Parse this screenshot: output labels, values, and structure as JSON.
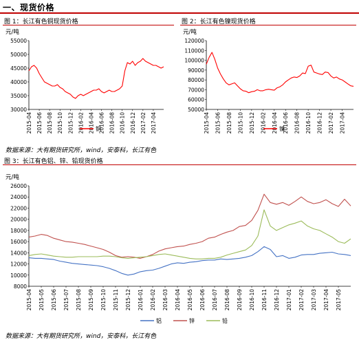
{
  "section_title": "一、现货价格",
  "source_label": "数据来源：大有期货研究所，wind，安泰科，长江有色",
  "chart_data": [
    {
      "id": "fig1",
      "type": "line",
      "caption": "图 1：长江有色铜现货价格",
      "ylabel": "元/吨",
      "ylim": [
        30000,
        55000
      ],
      "yticks": [
        30000,
        35000,
        40000,
        45000,
        50000,
        55000
      ],
      "ytick_labels": [
        "30000",
        "35000",
        "40000",
        "45000",
        "50000",
        "55000"
      ],
      "x_index_range": [
        0,
        26
      ],
      "xtick_labels": [
        "2015-04",
        "2015-06",
        "2015-08",
        "2015-10",
        "2015-12",
        "2016-02",
        "2016-04",
        "2016-06",
        "2016-08",
        "2016-10",
        "2016-12",
        "2017-02",
        "2017-04"
      ],
      "xtick_step": 2,
      "series": [
        {
          "name": "铜",
          "color": "#ff0000",
          "x": [
            0,
            0.5,
            1,
            1.5,
            2,
            2.5,
            3,
            3.5,
            4,
            4.5,
            5,
            5.5,
            6,
            6.5,
            7,
            7.5,
            8,
            8.5,
            9,
            9.5,
            10,
            10.5,
            11,
            11.5,
            12,
            12.5,
            13,
            13.5,
            14,
            14.5,
            15,
            15.5,
            16,
            16.5,
            17,
            17.5,
            18,
            18.5,
            19,
            19.5,
            20,
            20.5,
            21,
            21.5,
            22,
            22.5,
            23,
            23.5,
            24,
            24.5,
            25,
            25.5,
            26
          ],
          "values": [
            44000,
            45500,
            46000,
            45000,
            43000,
            41500,
            40000,
            39500,
            39000,
            38500,
            38500,
            39000,
            38000,
            37500,
            36500,
            36000,
            35500,
            34500,
            34000,
            35000,
            35500,
            35000,
            35500,
            36000,
            36500,
            37000,
            37000,
            37500,
            36500,
            36000,
            36500,
            37000,
            36500,
            36500,
            37000,
            37500,
            38500,
            44000,
            47000,
            46500,
            47500,
            46000,
            47000,
            47500,
            48500,
            47500,
            47000,
            46500,
            46000,
            46000,
            45500,
            45000,
            45500
          ]
        }
      ]
    },
    {
      "id": "fig2",
      "type": "line",
      "caption": "图 2：长江有色镍现货价格",
      "ylabel": "元/吨",
      "ylim": [
        50000,
        120000
      ],
      "yticks": [
        50000,
        60000,
        70000,
        80000,
        90000,
        100000,
        110000,
        120000
      ],
      "ytick_labels": [
        "50000",
        "60000",
        "70000",
        "80000",
        "90000",
        "100000",
        "110000",
        "120000"
      ],
      "x_index_range": [
        0,
        26
      ],
      "xtick_labels": [
        "2015-04",
        "2015-06",
        "2015-08",
        "2015-10",
        "2015-12",
        "2016-02",
        "2016-04",
        "2016-06",
        "2016-08",
        "2016-10",
        "2016-12",
        "2017-02",
        "2017-04"
      ],
      "xtick_step": 2,
      "series": [
        {
          "name": "镍",
          "color": "#ff0000",
          "x": [
            0,
            0.5,
            1,
            1.5,
            2,
            2.5,
            3,
            3.5,
            4,
            4.5,
            5,
            5.5,
            6,
            6.5,
            7,
            7.5,
            8,
            8.5,
            9,
            9.5,
            10,
            10.5,
            11,
            11.5,
            12,
            12.5,
            13,
            13.5,
            14,
            14.5,
            15,
            15.5,
            16,
            16.5,
            17,
            17.5,
            18,
            18.5,
            19,
            19.5,
            20,
            20.5,
            21,
            21.5,
            22,
            22.5,
            23,
            23.5,
            24,
            24.5,
            25,
            25.5,
            26
          ],
          "values": [
            96000,
            103000,
            108000,
            101000,
            92000,
            86000,
            81000,
            77000,
            75000,
            76000,
            77000,
            74000,
            71000,
            69000,
            68500,
            67000,
            68000,
            68500,
            70000,
            69000,
            69000,
            70000,
            70500,
            70000,
            69500,
            72000,
            73000,
            75000,
            78000,
            80000,
            82000,
            83000,
            82500,
            84000,
            87000,
            86500,
            94000,
            95000,
            88000,
            87000,
            86000,
            85500,
            88000,
            87500,
            84000,
            82000,
            83000,
            81000,
            80000,
            78000,
            76000,
            74000,
            73500
          ]
        }
      ]
    },
    {
      "id": "fig3",
      "type": "line",
      "caption": "图 3：长江有色铝、锌、铅现货价格",
      "ylabel": "元/吨",
      "ylim": [
        8000,
        26000
      ],
      "yticks": [
        8000,
        10000,
        12000,
        14000,
        16000,
        18000,
        20000,
        22000,
        24000,
        26000
      ],
      "ytick_labels": [
        "8000",
        "10000",
        "12000",
        "14000",
        "16000",
        "18000",
        "20000",
        "22000",
        "24000",
        "26000"
      ],
      "x_index_range": [
        0,
        26
      ],
      "xtick_labels": [
        "2015-04",
        "2015-05",
        "2015-06",
        "2015-07",
        "2015-08",
        "2015-09",
        "2015-10",
        "2015-11",
        "2015-12",
        "2016-01",
        "2016-02",
        "2016-03",
        "2016-04",
        "2016-05",
        "2016-06",
        "2016-07",
        "2016-08",
        "2016-09",
        "2016-10",
        "2016-11",
        "2016-12",
        "2017-01",
        "2017-02",
        "2017-03",
        "2017-04",
        "2017-05"
      ],
      "xtick_step": 1,
      "legend_position": "bottom",
      "series": [
        {
          "name": "铝",
          "color": "#4472c4",
          "x": [
            0,
            0.5,
            1,
            1.5,
            2,
            2.5,
            3,
            3.5,
            4,
            4.5,
            5,
            5.5,
            6,
            6.5,
            7,
            7.5,
            8,
            8.5,
            9,
            9.5,
            10,
            10.5,
            11,
            11.5,
            12,
            12.5,
            13,
            13.5,
            14,
            14.5,
            15,
            15.5,
            16,
            16.5,
            17,
            17.5,
            18,
            18.5,
            19,
            19.5,
            20,
            20.5,
            21,
            21.5,
            22,
            22.5,
            23,
            23.5,
            24,
            24.5,
            25,
            25.5,
            26
          ],
          "values": [
            13100,
            13000,
            13000,
            12900,
            12800,
            12500,
            12300,
            12100,
            12000,
            11900,
            11800,
            11700,
            11500,
            11200,
            10800,
            10300,
            10000,
            10200,
            10600,
            10800,
            10900,
            11200,
            11600,
            12000,
            12200,
            12100,
            12300,
            12400,
            12600,
            12700,
            12700,
            12900,
            12800,
            12900,
            13000,
            13200,
            13500,
            14200,
            15100,
            14600,
            13300,
            13500,
            13000,
            13200,
            13600,
            13700,
            13700,
            13900,
            14000,
            14100,
            13800,
            13700,
            13500
          ]
        },
        {
          "name": "锌",
          "color": "#c0504d",
          "x": [
            0,
            0.5,
            1,
            1.5,
            2,
            2.5,
            3,
            3.5,
            4,
            4.5,
            5,
            5.5,
            6,
            6.5,
            7,
            7.5,
            8,
            8.5,
            9,
            9.5,
            10,
            10.5,
            11,
            11.5,
            12,
            12.5,
            13,
            13.5,
            14,
            14.5,
            15,
            15.5,
            16,
            16.5,
            17,
            17.5,
            18,
            18.5,
            19,
            19.5,
            20,
            20.5,
            21,
            21.5,
            22,
            22.5,
            23,
            23.5,
            24,
            24.5,
            25,
            25.5,
            26
          ],
          "values": [
            16800,
            17000,
            17300,
            17100,
            16600,
            16300,
            16000,
            15900,
            15700,
            15500,
            15200,
            14900,
            14600,
            14100,
            13500,
            13200,
            13300,
            13200,
            13000,
            13300,
            13700,
            14300,
            14700,
            14900,
            15100,
            15200,
            15500,
            15700,
            16000,
            16600,
            16800,
            17300,
            17700,
            18000,
            18700,
            18900,
            19800,
            21600,
            24500,
            23000,
            22700,
            23000,
            22500,
            23200,
            24000,
            23200,
            22800,
            23000,
            23500,
            22800,
            22300,
            23600,
            22400
          ]
        },
        {
          "name": "铅",
          "color": "#9bbb59",
          "x": [
            0,
            0.5,
            1,
            1.5,
            2,
            2.5,
            3,
            3.5,
            4,
            4.5,
            5,
            5.5,
            6,
            6.5,
            7,
            7.5,
            8,
            8.5,
            9,
            9.5,
            10,
            10.5,
            11,
            11.5,
            12,
            12.5,
            13,
            13.5,
            14,
            14.5,
            15,
            15.5,
            16,
            16.5,
            17,
            17.5,
            18,
            18.5,
            19,
            19.5,
            20,
            20.5,
            21,
            21.5,
            22,
            22.5,
            23,
            23.5,
            24,
            24.5,
            25,
            25.5,
            26
          ],
          "values": [
            13500,
            13700,
            13800,
            13600,
            13400,
            13300,
            13200,
            13200,
            13300,
            13300,
            13300,
            13300,
            13400,
            13400,
            13300,
            13100,
            13000,
            13100,
            13200,
            13300,
            13500,
            13700,
            13800,
            13600,
            13400,
            13200,
            13000,
            12900,
            12900,
            13000,
            13000,
            13200,
            13600,
            13900,
            14200,
            14500,
            15300,
            17000,
            21700,
            18800,
            18000,
            18500,
            19000,
            19300,
            19700,
            18800,
            18300,
            18000,
            17400,
            16800,
            16000,
            15700,
            16500
          ]
        }
      ]
    }
  ]
}
